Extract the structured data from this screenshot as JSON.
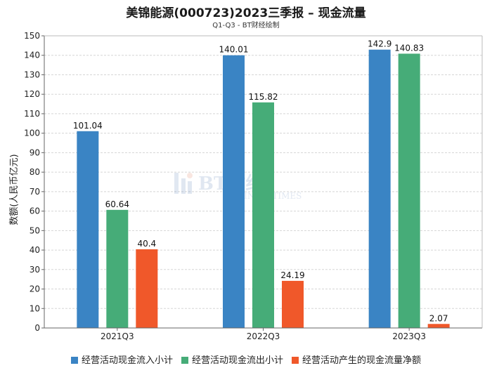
{
  "chart_data": {
    "type": "bar",
    "title": "美锦能源(000723)2023三季报 – 现金流量",
    "subtitle": "Q1-Q3 - BT财经绘制",
    "ylabel": "数额(人民币亿元)",
    "xlabel": "",
    "categories": [
      "2021Q3",
      "2022Q3",
      "2023Q3"
    ],
    "ylim": [
      0,
      150
    ],
    "yticks": [
      0,
      10,
      20,
      30,
      40,
      50,
      60,
      70,
      80,
      90,
      100,
      110,
      120,
      130,
      140,
      150
    ],
    "grid": true,
    "legend_position": "bottom",
    "series": [
      {
        "name": "经营活动现金流入小计",
        "color": "#3a84c4",
        "values": [
          101.04,
          140.01,
          142.9
        ]
      },
      {
        "name": "经营活动现金流出小计",
        "color": "#46ac78",
        "values": [
          60.64,
          115.82,
          140.83
        ]
      },
      {
        "name": "经营活动产生的现金流量净额",
        "color": "#f0582a",
        "values": [
          40.4,
          24.19,
          2.07
        ]
      }
    ]
  },
  "watermark": {
    "logo_text": "BT财经",
    "logo_sub": "BUSINESSTIMES"
  }
}
